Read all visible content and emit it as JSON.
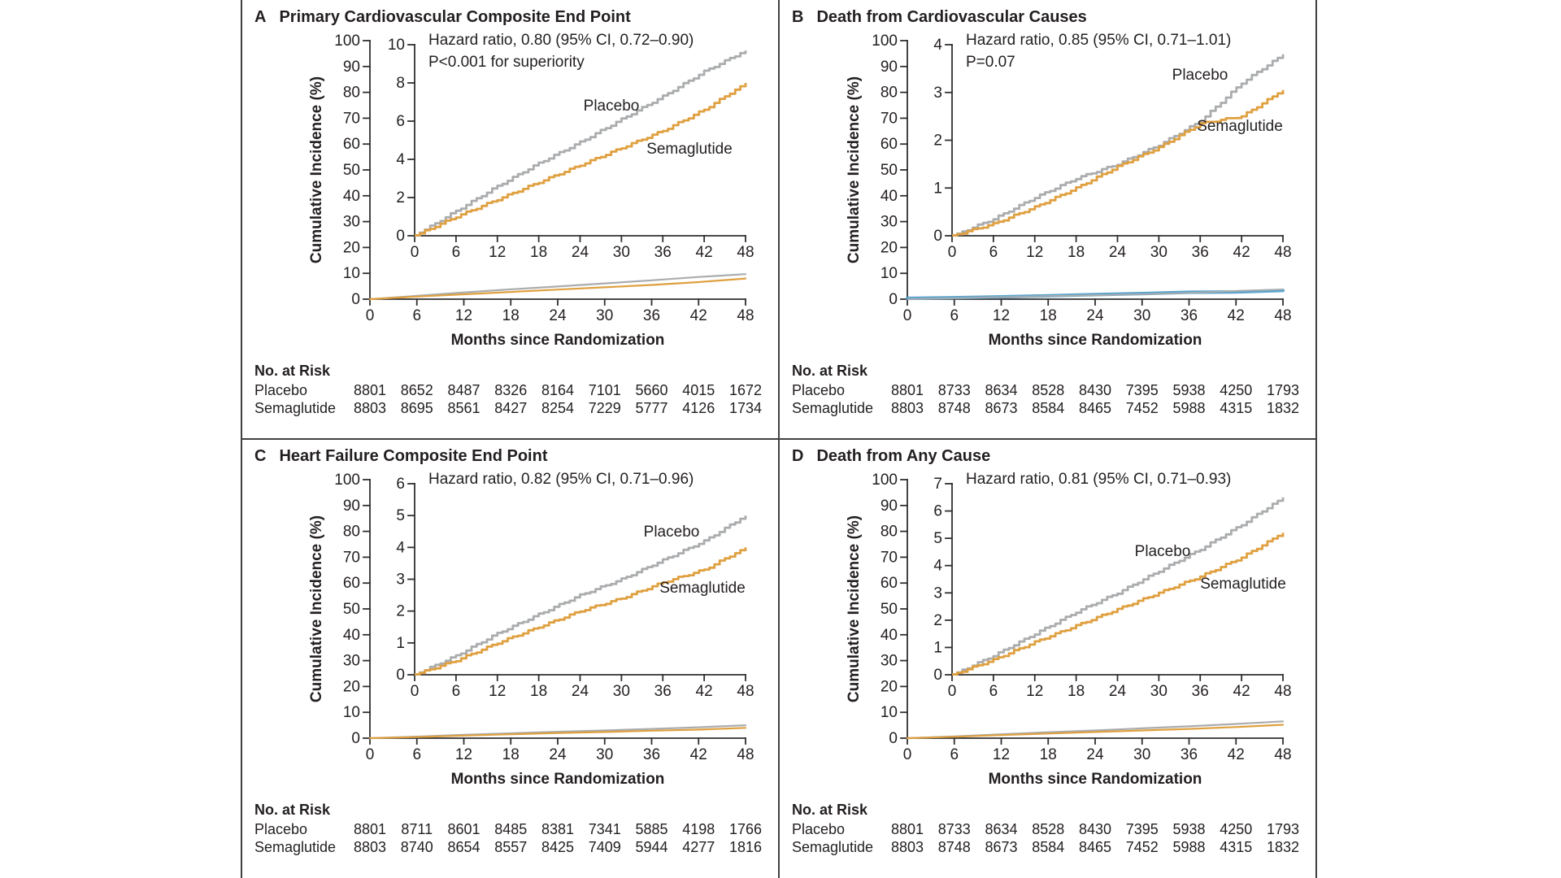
{
  "figure": {
    "y_axis_label": "Cumulative Incidence (%)",
    "x_axis_label": "Months since Randomization",
    "risk_table_header": "No. at Risk",
    "x_ticks": [
      0,
      6,
      12,
      18,
      24,
      30,
      36,
      42,
      48
    ],
    "outer_y_ticks": [
      100,
      90,
      80,
      70,
      60,
      50,
      40,
      30,
      20,
      10,
      0
    ],
    "outer_ylim": [
      0,
      100
    ],
    "colors": {
      "placebo": "#aaacae",
      "semaglutide": "#dfa040",
      "axis": "#2f2f31",
      "text": "#231f20",
      "panel_b_main_overlay": "#4f9cc8"
    }
  },
  "chart_data": [
    {
      "type": "line",
      "panel": "A",
      "title": "Primary Cardiovascular Composite End Point",
      "annotation_line1": "Hazard ratio, 0.80 (95% CI, 0.72–0.90)",
      "annotation_line2": "P<0.001 for superiority",
      "xlabel": "Months since Randomization",
      "ylabel": "Cumulative Incidence (%)",
      "x": [
        0,
        6,
        12,
        18,
        24,
        30,
        36,
        42,
        48
      ],
      "inset_ylim": [
        0,
        10
      ],
      "inset_yticks": [
        10,
        8,
        6,
        4,
        2,
        0
      ],
      "series": [
        {
          "name": "Placebo",
          "color": "#aaacae",
          "values": [
            0,
            1.3,
            2.6,
            3.8,
            4.9,
            6.1,
            7.3,
            8.6,
            9.7
          ]
        },
        {
          "name": "Semaglutide",
          "color": "#dfa040",
          "values": [
            0,
            1.0,
            1.9,
            2.8,
            3.7,
            4.6,
            5.5,
            6.6,
            8.0
          ]
        }
      ],
      "no_at_risk": [
        {
          "label": "Placebo",
          "values": [
            8801,
            8652,
            8487,
            8326,
            8164,
            7101,
            5660,
            4015,
            1672
          ]
        },
        {
          "label": "Semaglutide",
          "values": [
            8803,
            8695,
            8561,
            8427,
            8254,
            7229,
            5777,
            4126,
            1734
          ]
        }
      ]
    },
    {
      "type": "line",
      "panel": "B",
      "title": "Death from Cardiovascular Causes",
      "annotation_line1": "Hazard ratio, 0.85 (95% CI, 0.71–1.01)",
      "annotation_line2": "P=0.07",
      "xlabel": "Months since Randomization",
      "ylabel": "Cumulative Incidence (%)",
      "x": [
        0,
        6,
        12,
        18,
        24,
        30,
        36,
        42,
        48
      ],
      "inset_ylim": [
        0,
        4
      ],
      "inset_yticks": [
        4,
        3,
        2,
        1,
        0
      ],
      "main_overlay_color": "#4f9cc8",
      "series": [
        {
          "name": "Placebo",
          "color": "#aaacae",
          "values": [
            0,
            0.35,
            0.8,
            1.2,
            1.5,
            1.9,
            2.4,
            3.2,
            3.8
          ]
        },
        {
          "name": "Semaglutide",
          "color": "#dfa040",
          "values": [
            0,
            0.25,
            0.6,
            1.0,
            1.45,
            1.85,
            2.35,
            2.5,
            3.05
          ]
        }
      ],
      "no_at_risk": [
        {
          "label": "Placebo",
          "values": [
            8801,
            8733,
            8634,
            8528,
            8430,
            7395,
            5938,
            4250,
            1793
          ]
        },
        {
          "label": "Semaglutide",
          "values": [
            8803,
            8748,
            8673,
            8584,
            8465,
            7452,
            5988,
            4315,
            1832
          ]
        }
      ]
    },
    {
      "type": "line",
      "panel": "C",
      "title": "Heart Failure Composite End Point",
      "annotation_line1": "Hazard ratio, 0.82 (95% CI, 0.71–0.96)",
      "annotation_line2": "",
      "xlabel": "Months since Randomization",
      "ylabel": "Cumulative Incidence (%)",
      "x": [
        0,
        6,
        12,
        18,
        24,
        30,
        36,
        42,
        48
      ],
      "inset_ylim": [
        0,
        6
      ],
      "inset_yticks": [
        6,
        5,
        4,
        3,
        2,
        1,
        0
      ],
      "series": [
        {
          "name": "Placebo",
          "color": "#aaacae",
          "values": [
            0,
            0.6,
            1.3,
            1.9,
            2.5,
            3.0,
            3.6,
            4.2,
            5.0
          ]
        },
        {
          "name": "Semaglutide",
          "color": "#dfa040",
          "values": [
            0,
            0.45,
            1.0,
            1.5,
            2.0,
            2.4,
            2.9,
            3.3,
            4.0
          ]
        }
      ],
      "no_at_risk": [
        {
          "label": "Placebo",
          "values": [
            8801,
            8711,
            8601,
            8485,
            8381,
            7341,
            5885,
            4198,
            1766
          ]
        },
        {
          "label": "Semaglutide",
          "values": [
            8803,
            8740,
            8654,
            8557,
            8425,
            7409,
            5944,
            4277,
            1816
          ]
        }
      ]
    },
    {
      "type": "line",
      "panel": "D",
      "title": "Death from Any Cause",
      "annotation_line1": "Hazard ratio, 0.81 (95% CI, 0.71–0.93)",
      "annotation_line2": "",
      "xlabel": "Months since Randomization",
      "ylabel": "Cumulative Incidence (%)",
      "x": [
        0,
        6,
        12,
        18,
        24,
        30,
        36,
        42,
        48
      ],
      "inset_ylim": [
        0,
        7
      ],
      "inset_yticks": [
        7,
        6,
        5,
        4,
        3,
        2,
        1,
        0
      ],
      "series": [
        {
          "name": "Placebo",
          "color": "#aaacae",
          "values": [
            0,
            0.7,
            1.5,
            2.3,
            3.0,
            3.8,
            4.6,
            5.5,
            6.5
          ]
        },
        {
          "name": "Semaglutide",
          "color": "#dfa040",
          "values": [
            0,
            0.55,
            1.2,
            1.8,
            2.4,
            3.0,
            3.6,
            4.3,
            5.2
          ]
        }
      ],
      "no_at_risk": [
        {
          "label": "Placebo",
          "values": [
            8801,
            8733,
            8634,
            8528,
            8430,
            7395,
            5938,
            4250,
            1793
          ]
        },
        {
          "label": "Semaglutide",
          "values": [
            8803,
            8748,
            8673,
            8584,
            8465,
            7452,
            5988,
            4315,
            1832
          ]
        }
      ]
    }
  ]
}
